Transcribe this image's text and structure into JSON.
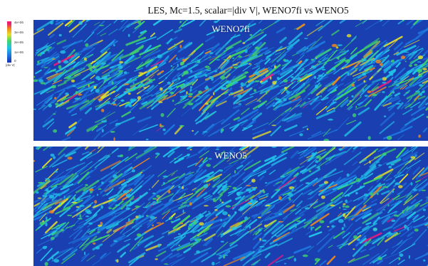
{
  "title": "LES, Mc=1.5, scalar=|div V|, WENO7fi vs WENO5",
  "colorbar": {
    "ticks": [
      "4e+06",
      "3e+06",
      "2e+06",
      "1e+06",
      "0"
    ],
    "label": "|div V|",
    "colors": [
      "#1a2fb0",
      "#1d78e0",
      "#21c4e8",
      "#3fd46a",
      "#e6e02a",
      "#f28a1c",
      "#f0197a"
    ]
  },
  "panels": [
    {
      "label": "WENO7fi",
      "background": "#1a3fb0"
    },
    {
      "label": "WENO5",
      "background": "#1a3fb0"
    }
  ]
}
